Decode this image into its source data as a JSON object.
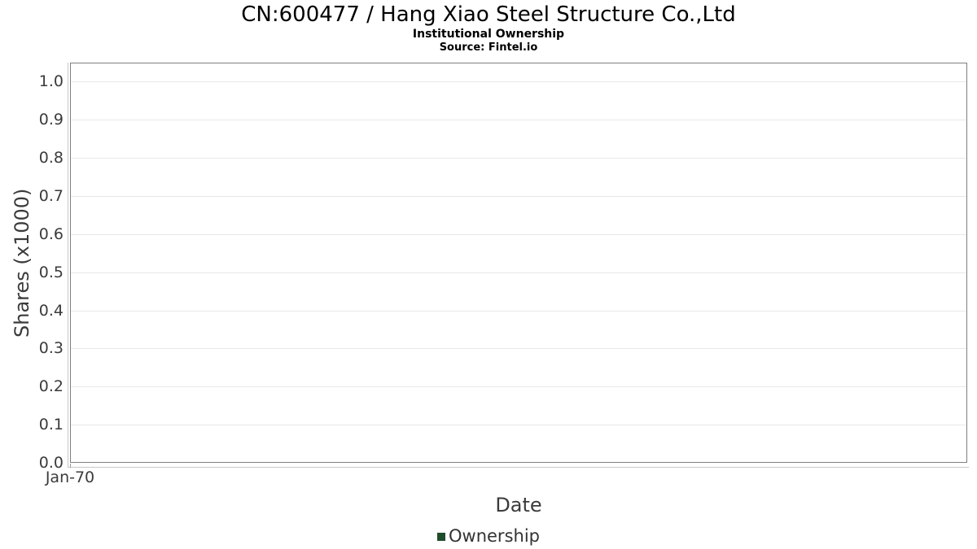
{
  "chart_data": {
    "type": "line",
    "title": "CN:600477 / Hang Xiao Steel Structure Co.,Ltd",
    "subtitle": "Institutional Ownership",
    "source": "Source: Fintel.io",
    "xlabel": "Date",
    "ylabel": "Shares (x1000)",
    "ylim": [
      0,
      1.05
    ],
    "yticks": [
      "0.0",
      "0.1",
      "0.2",
      "0.3",
      "0.4",
      "0.5",
      "0.6",
      "0.7",
      "0.8",
      "0.9",
      "1.0"
    ],
    "xticks": [
      {
        "label": "Jan-70",
        "pos": 0
      }
    ],
    "grid": true,
    "legend_position": "bottom",
    "series": [
      {
        "name": "Ownership",
        "color": "#1e4d2c",
        "x": [],
        "y": []
      }
    ]
  },
  "colors": {
    "plot_border": "#7f7f7f",
    "gridline": "#e8e8e8",
    "axis_line": "#c8c8c8",
    "tick_text": "#3b3b3b",
    "series_ownership": "#1e4d2c"
  }
}
